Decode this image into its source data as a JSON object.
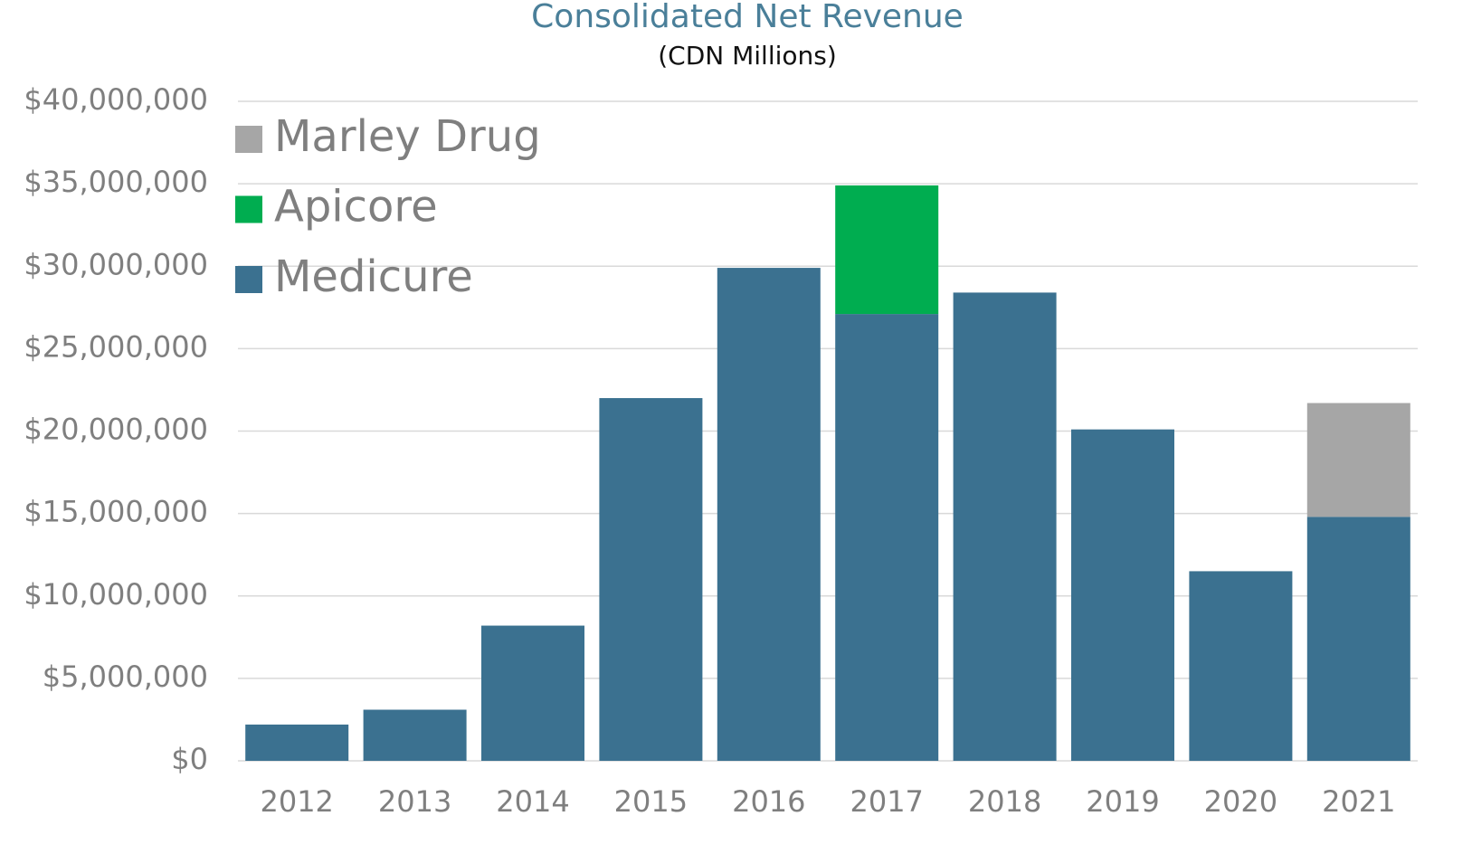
{
  "chart_data": {
    "type": "stacked_bar",
    "title": "Consolidated Net Revenue",
    "subtitle": "(CDN Millions)",
    "categories": [
      "2012",
      "2013",
      "2014",
      "2015",
      "2016",
      "2017",
      "2018",
      "2019",
      "2020",
      "2021"
    ],
    "series": [
      {
        "name": "Medicure",
        "color": "#3b7190",
        "values": [
          2200000,
          3100000,
          8200000,
          22000000,
          29900000,
          27100000,
          28400000,
          20100000,
          11500000,
          14800000
        ]
      },
      {
        "name": "Apicore",
        "color": "#00ad50",
        "values": [
          null,
          null,
          null,
          null,
          null,
          7800000,
          null,
          null,
          null,
          null
        ]
      },
      {
        "name": "Marley Drug",
        "color": "#a6a6a6",
        "values": [
          null,
          null,
          null,
          null,
          null,
          null,
          null,
          null,
          null,
          6900000
        ]
      }
    ],
    "ylim": [
      0,
      40000000
    ],
    "yticks": [
      {
        "value": 0,
        "label": "$0"
      },
      {
        "value": 5000000,
        "label": "$5,000,000"
      },
      {
        "value": 10000000,
        "label": "$10,000,000"
      },
      {
        "value": 15000000,
        "label": "$15,000,000"
      },
      {
        "value": 20000000,
        "label": "$20,000,000"
      },
      {
        "value": 25000000,
        "label": "$25,000,000"
      },
      {
        "value": 30000000,
        "label": "$30,000,000"
      },
      {
        "value": 35000000,
        "label": "$35,000,000"
      },
      {
        "value": 40000000,
        "label": "$40,000,000"
      }
    ],
    "grid": true,
    "legend": "upper left"
  }
}
